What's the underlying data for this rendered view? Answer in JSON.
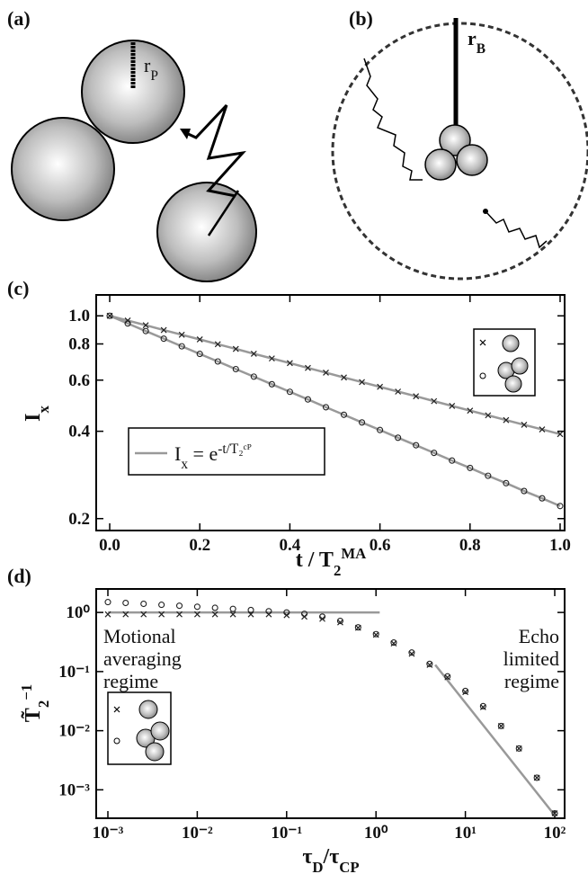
{
  "panel_labels": [
    "(a)",
    "(b)",
    "(c)",
    "(d)"
  ],
  "radius_labels": {
    "a": [
      {
        "t": "r"
      },
      {
        "t": "P",
        "s": "sub"
      }
    ],
    "b": [
      {
        "t": "r"
      },
      {
        "t": "B",
        "s": "sub"
      }
    ]
  },
  "chart_data": [
    {
      "type": "scatter",
      "x": [
        0,
        0.04,
        0.08,
        0.12,
        0.16,
        0.2,
        0.24,
        0.28,
        0.32,
        0.36,
        0.4,
        0.44,
        0.48,
        0.52,
        0.56,
        0.6,
        0.64,
        0.68,
        0.72,
        0.76,
        0.8,
        0.84,
        0.88,
        0.92,
        0.96,
        1.0
      ],
      "series": [
        {
          "marker": "x",
          "color": "#222222",
          "values": [
            1,
            0.963,
            0.928,
            0.893,
            0.86,
            0.829,
            0.798,
            0.769,
            0.74,
            0.713,
            0.687,
            0.661,
            0.637,
            0.613,
            0.591,
            0.569,
            0.548,
            0.528,
            0.508,
            0.489,
            0.471,
            0.454,
            0.437,
            0.421,
            0.406,
            0.391
          ]
        },
        {
          "marker": "o",
          "color": "#222222",
          "values": [
            1,
            0.941,
            0.886,
            0.834,
            0.785,
            0.739,
            0.696,
            0.655,
            0.617,
            0.581,
            0.547,
            0.515,
            0.484,
            0.456,
            0.429,
            0.404,
            0.38,
            0.358,
            0.337,
            0.317,
            0.299,
            0.281,
            0.265,
            0.249,
            0.235,
            0.221
          ]
        }
      ],
      "fit": {
        "color": "#999999",
        "label": [
          {
            "t": "I"
          },
          {
            "t": "x",
            "s": "sub"
          },
          {
            "t": " = e"
          },
          {
            "t": "-t/T₂ᶜᴾ",
            "s": "sup"
          }
        ]
      },
      "xlim": [
        -0.03,
        1.01
      ],
      "ylim": [
        0.182,
        1.18
      ],
      "ylog": true,
      "xticks": [
        {
          "value": 0,
          "label": "0.0"
        },
        0.2,
        0.4,
        0.6,
        0.8,
        {
          "value": 1,
          "label": "1.0"
        }
      ],
      "yticks": [
        0.2,
        0.4,
        0.6,
        0.8,
        {
          "value": 1,
          "label": "1.0"
        }
      ],
      "xlabel": [
        {
          "t": "t / T"
        },
        {
          "t": "2",
          "s": "sub"
        },
        {
          "t": "MA",
          "s": "sup"
        }
      ],
      "ylabel": [
        {
          "t": "I"
        },
        {
          "t": "x",
          "s": "sub"
        }
      ]
    },
    {
      "type": "scatter",
      "x": [
        0.001,
        0.00158,
        0.00251,
        0.00398,
        0.00631,
        0.01,
        0.0158,
        0.0251,
        0.0398,
        0.0631,
        0.1,
        0.158,
        0.251,
        0.398,
        0.631,
        1,
        1.58,
        2.51,
        3.98,
        6.31,
        10,
        15.8,
        25.1,
        39.8,
        63.1,
        100
      ],
      "series": [
        {
          "marker": "x",
          "color": "#222222",
          "values": [
            0.93,
            0.93,
            0.93,
            0.93,
            0.93,
            0.93,
            0.93,
            0.93,
            0.93,
            0.93,
            0.9,
            0.85,
            0.78,
            0.68,
            0.55,
            0.42,
            0.3,
            0.2,
            0.13,
            0.08,
            0.045,
            0.025,
            0.012,
            0.005,
            0.0016,
            0.0004
          ]
        },
        {
          "marker": "o",
          "color": "#222222",
          "values": [
            1.5,
            1.45,
            1.4,
            1.35,
            1.3,
            1.25,
            1.2,
            1.15,
            1.1,
            1.05,
            1.0,
            0.95,
            0.85,
            0.72,
            0.56,
            0.43,
            0.31,
            0.21,
            0.135,
            0.083,
            0.047,
            0.026,
            0.012,
            0.005,
            0.0016,
            0.0004
          ]
        }
      ],
      "asymptotes": [
        {
          "color": "#999999",
          "x": [
            0.001,
            1.1
          ],
          "y": [
            1,
            1
          ]
        },
        {
          "color": "#999999",
          "x": [
            4.6,
            100
          ],
          "y": [
            0.13,
            0.00037
          ]
        }
      ],
      "annotations": {
        "left": [
          "Motional",
          "averaging",
          "regime"
        ],
        "right": [
          "Echo",
          "limited",
          "regime"
        ]
      },
      "xlim": [
        0.00074,
        129
      ],
      "ylim": [
        0.00033,
        2.5
      ],
      "xlog": true,
      "ylog": true,
      "xticks": [
        {
          "value": 0.001,
          "label": "10⁻³"
        },
        {
          "value": 0.01,
          "label": "10⁻²"
        },
        {
          "value": 0.1,
          "label": "10⁻¹"
        },
        {
          "value": 1,
          "label": "10⁰"
        },
        {
          "value": 10,
          "label": "10¹"
        },
        {
          "value": 100,
          "label": "10²"
        }
      ],
      "yticks": [
        {
          "value": 0.001,
          "label": "10⁻³"
        },
        {
          "value": 0.01,
          "label": "10⁻²"
        },
        {
          "value": 0.1,
          "label": "10⁻¹"
        },
        {
          "value": 1,
          "label": "10⁰"
        }
      ],
      "xlabel": [
        {
          "t": "τ"
        },
        {
          "t": "D",
          "s": "sub"
        },
        {
          "t": "/τ"
        },
        {
          "t": "CP",
          "s": "sub"
        }
      ],
      "ylabel": [
        {
          "t": "T̃"
        },
        {
          "t": "2",
          "s": "sub"
        },
        {
          "t": "−1",
          "s": "sup"
        }
      ]
    }
  ]
}
